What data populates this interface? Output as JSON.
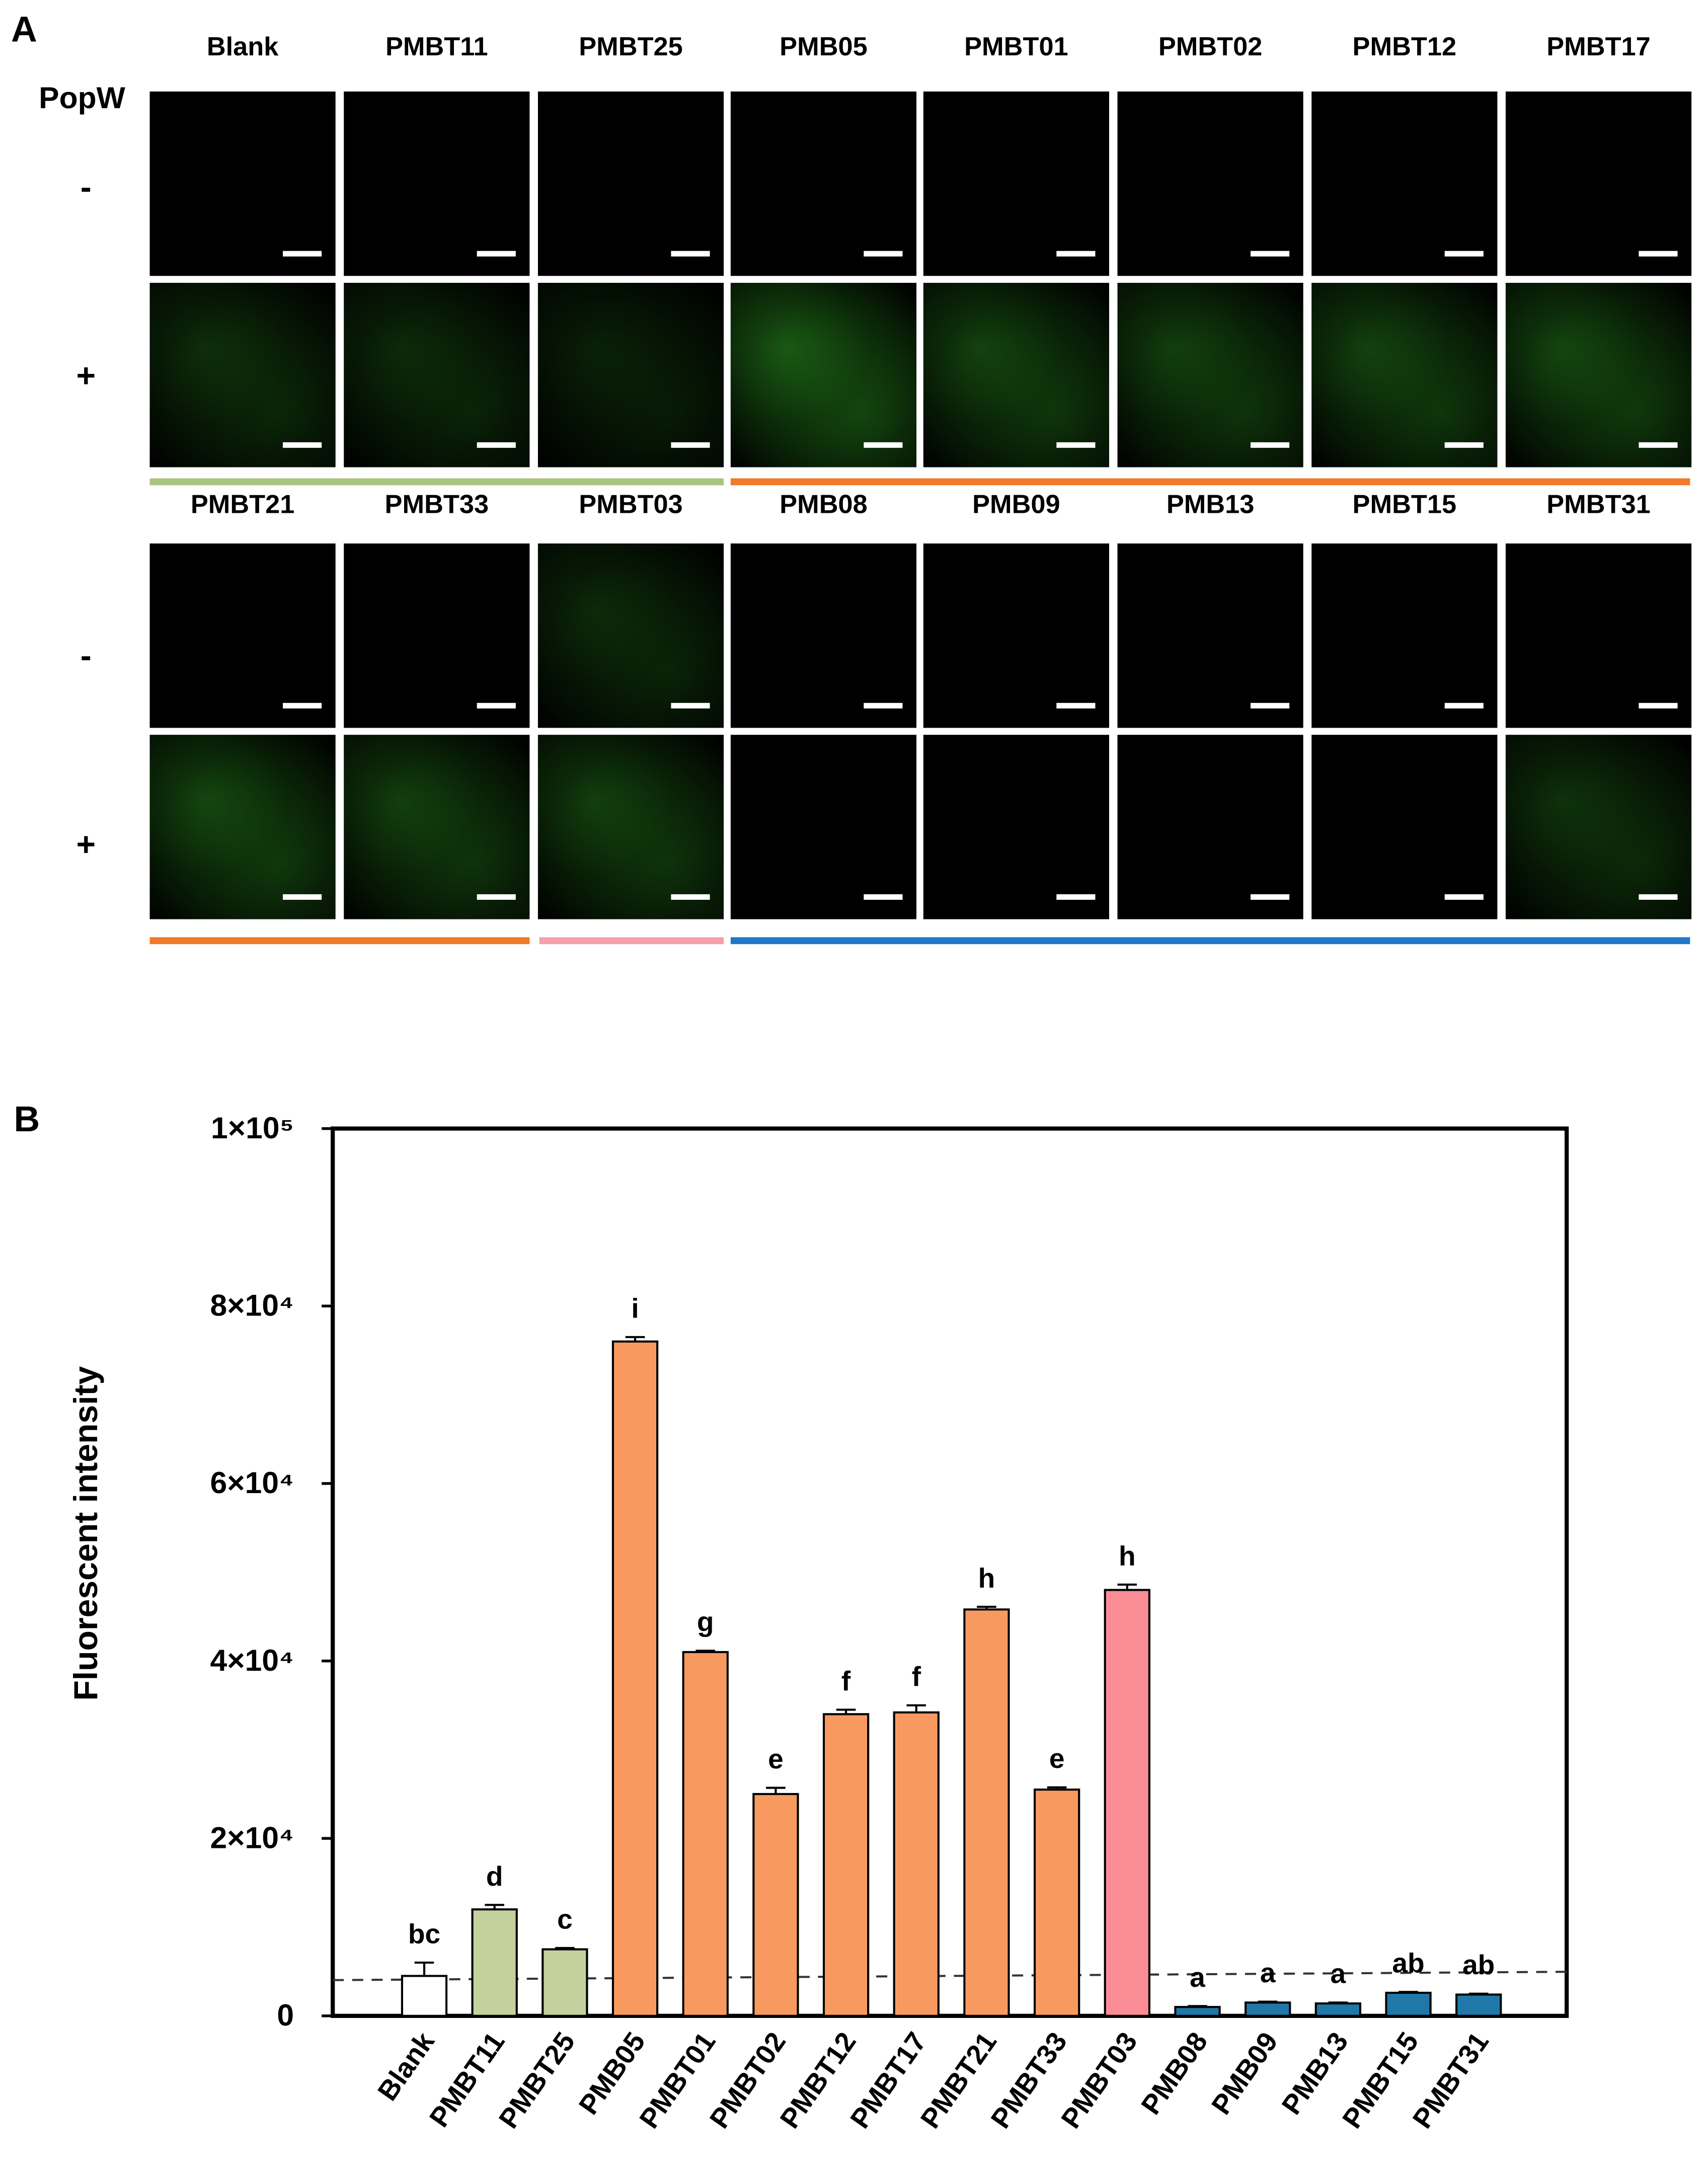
{
  "panel_a": {
    "letter": "A",
    "popw_label": "PopW",
    "sign_minus": "-",
    "sign_plus": "+",
    "rows": [
      {
        "labels": [
          "Blank",
          "PMBT11",
          "PMBT25",
          "PMB05",
          "PMBT01",
          "PMBT02",
          "PMBT12",
          "PMBT17"
        ],
        "minus_glow": [
          0,
          0,
          0,
          0,
          0,
          0,
          0,
          0
        ],
        "plus_glow": [
          0.3,
          0.25,
          0.15,
          0.85,
          0.55,
          0.5,
          0.55,
          0.6
        ]
      },
      {
        "labels": [
          "PMBT21",
          "PMBT33",
          "PMBT03",
          "PMB08",
          "PMB09",
          "PMB13",
          "PMBT15",
          "PMBT31"
        ],
        "minus_glow": [
          0,
          0,
          0.25,
          0,
          0,
          0,
          0,
          0
        ],
        "plus_glow": [
          0.6,
          0.5,
          0.5,
          0,
          0,
          0,
          0,
          0.35
        ]
      }
    ],
    "group_colors": {
      "green": "#a9c47f",
      "orange": "#f07a2a",
      "pink": "#f4a0a8",
      "blue": "#1f78c8"
    }
  },
  "panel_b": {
    "letter": "B"
  },
  "chart_data": {
    "type": "bar",
    "title": "",
    "xlabel": "",
    "ylabel": "Fluorescent intensity",
    "ylim": [
      0,
      100000
    ],
    "y_tick_values": [
      0,
      20000,
      40000,
      60000,
      80000,
      100000
    ],
    "y_tick_labels": [
      "0",
      "2×10⁴",
      "4×10⁴",
      "6×10⁴",
      "8×10⁴",
      "1×10⁵"
    ],
    "baseline_dashed": 4500,
    "categories": [
      "Blank",
      "PMBT11",
      "PMBT25",
      "PMB05",
      "PMBT01",
      "PMBT02",
      "PMBT12",
      "PMBT17",
      "PMBT21",
      "PMBT33",
      "PMBT03",
      "PMB08",
      "PMB09",
      "PMB13",
      "PMBT15",
      "PMBT31"
    ],
    "values": [
      4500,
      12000,
      7500,
      76000,
      41000,
      25000,
      34000,
      34200,
      45800,
      25500,
      48000,
      1000,
      1500,
      1400,
      2600,
      2400
    ],
    "errors": [
      1500,
      500,
      150,
      500,
      150,
      700,
      500,
      800,
      300,
      250,
      600,
      100,
      100,
      100,
      100,
      100
    ],
    "letters": [
      "bc",
      "d",
      "c",
      "i",
      "g",
      "e",
      "f",
      "f",
      "h",
      "e",
      "h",
      "a",
      "a",
      "a",
      "ab",
      "ab"
    ],
    "colors": [
      "#ffffff",
      "#c4d19c",
      "#c4d19c",
      "#f89a60",
      "#f89a60",
      "#f89a60",
      "#f89a60",
      "#f89a60",
      "#f89a60",
      "#f89a60",
      "#fa8c96",
      "#1f78a8",
      "#1f78a8",
      "#1f78a8",
      "#1f78a8",
      "#1f78a8"
    ]
  }
}
